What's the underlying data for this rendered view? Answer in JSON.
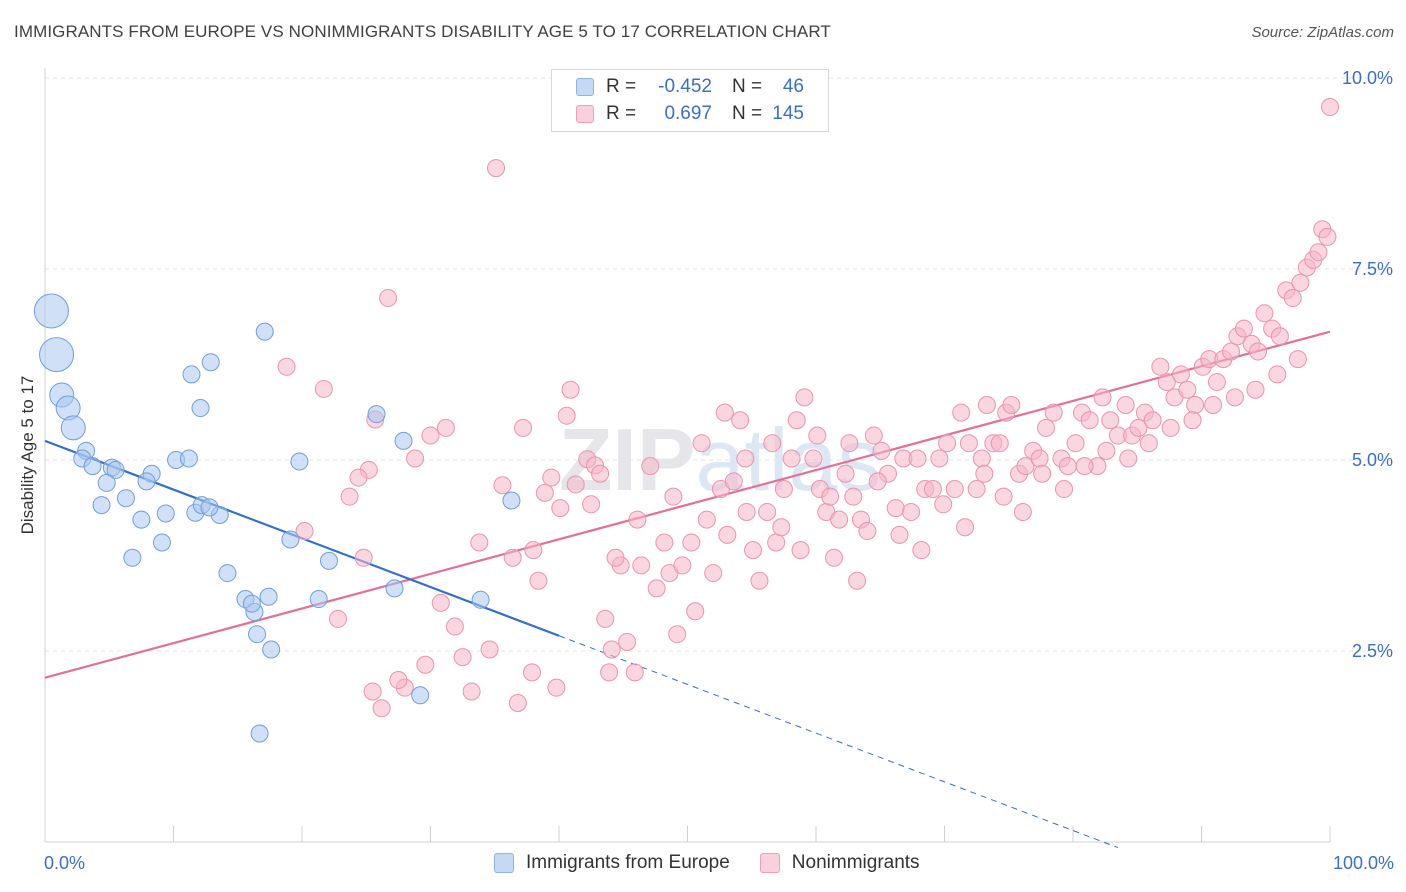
{
  "title": "IMMIGRANTS FROM EUROPE VS NONIMMIGRANTS DISABILITY AGE 5 TO 17 CORRELATION CHART",
  "source": "Source: ZipAtlas.com",
  "watermark": "ZIPatlas",
  "legend": {
    "rows": [
      {
        "r_label": "R =",
        "r_value": "-0.452",
        "n_label": "N =",
        "n_value": "46",
        "color": "#a9c6ee"
      },
      {
        "r_label": "R =",
        "r_value": "0.697",
        "n_label": "N =",
        "n_value": "145",
        "color": "#f5b5c8"
      }
    ]
  },
  "bottom_legend": [
    {
      "label": "Immigrants from Europe",
      "color": "#a9c6ee"
    },
    {
      "label": "Nonimmigrants",
      "color": "#f5b5c8"
    }
  ],
  "chart_data": {
    "type": "scatter",
    "title": "IMMIGRANTS FROM EUROPE VS NONIMMIGRANTS DISABILITY AGE 5 TO 17 CORRELATION CHART",
    "xlabel": "",
    "ylabel": "Disability Age 5 to 17",
    "xlim": [
      0,
      100
    ],
    "ylim": [
      0,
      10
    ],
    "x_tick_labels": [
      "0.0%",
      "100.0%"
    ],
    "y_ticks": [
      {
        "value": 2.5,
        "label": "2.5%"
      },
      {
        "value": 5.0,
        "label": "5.0%"
      },
      {
        "value": 7.5,
        "label": "7.5%"
      },
      {
        "value": 10.0,
        "label": "10.0%"
      }
    ],
    "grid": true,
    "legend_position": "top-center",
    "series": [
      {
        "name": "Immigrants from Europe",
        "color": "#a9c6ee",
        "stroke": "#6f9fd8",
        "trend_color": "#2f6fd0",
        "trend": {
          "x0": 0,
          "y0": 5.25,
          "x1": 40,
          "y1": 2.7,
          "dashed_to_x": 83.5
        },
        "points": [
          [
            0.5,
            6.95,
            3
          ],
          [
            0.9,
            6.38,
            3
          ],
          [
            1.3,
            5.85,
            2
          ],
          [
            1.8,
            5.68,
            2
          ],
          [
            2.2,
            5.42,
            2
          ],
          [
            3.2,
            5.12,
            1
          ],
          [
            2.9,
            5.02,
            1
          ],
          [
            3.7,
            4.92,
            1
          ],
          [
            5.2,
            4.9,
            1
          ],
          [
            5.5,
            4.87,
            1
          ],
          [
            4.8,
            4.7,
            1
          ],
          [
            6.3,
            4.5,
            1
          ],
          [
            4.4,
            4.41,
            1
          ],
          [
            7.5,
            4.22,
            1
          ],
          [
            8.3,
            4.82,
            1
          ],
          [
            7.9,
            4.72,
            1
          ],
          [
            9.1,
            3.92,
            1
          ],
          [
            10.2,
            5.0,
            1
          ],
          [
            11.2,
            5.02,
            1
          ],
          [
            9.4,
            4.3,
            1
          ],
          [
            11.7,
            4.31,
            1
          ],
          [
            12.2,
            4.41,
            1
          ],
          [
            13.6,
            4.28,
            1
          ],
          [
            12.8,
            4.38,
            1
          ],
          [
            6.8,
            3.72,
            1
          ],
          [
            14.2,
            3.52,
            1
          ],
          [
            11.4,
            6.12,
            1
          ],
          [
            12.1,
            5.68,
            1
          ],
          [
            12.9,
            6.28,
            1
          ],
          [
            15.6,
            3.18,
            1
          ],
          [
            16.3,
            3.01,
            1
          ],
          [
            16.1,
            3.12,
            1
          ],
          [
            17.4,
            3.21,
            1
          ],
          [
            16.5,
            2.72,
            1
          ],
          [
            17.6,
            2.52,
            1
          ],
          [
            16.7,
            1.42,
            1
          ],
          [
            17.1,
            6.68,
            1
          ],
          [
            19.1,
            3.96,
            1
          ],
          [
            19.8,
            4.98,
            1
          ],
          [
            21.3,
            3.18,
            1
          ],
          [
            22.1,
            3.68,
            1
          ],
          [
            25.8,
            5.6,
            1
          ],
          [
            27.2,
            3.32,
            1
          ],
          [
            27.9,
            5.25,
            1
          ],
          [
            29.2,
            1.92,
            1
          ],
          [
            33.9,
            3.17,
            1
          ],
          [
            36.3,
            4.47,
            1
          ]
        ]
      },
      {
        "name": "Nonimmigrants",
        "color": "#f5b5c8",
        "stroke": "#e994ae",
        "trend_color": "#e46f97",
        "trend": {
          "x0": 0,
          "y0": 2.15,
          "x1": 100,
          "y1": 6.68
        },
        "points": [
          [
            21.7,
            5.93,
            1
          ],
          [
            25.7,
            5.53,
            1
          ],
          [
            25.2,
            4.87,
            1
          ],
          [
            24.4,
            4.77,
            1
          ],
          [
            24.8,
            3.72,
            1
          ],
          [
            26.7,
            7.12,
            1
          ],
          [
            25.5,
            1.97,
            1
          ],
          [
            26.2,
            1.75,
            1
          ],
          [
            28.0,
            2.02,
            1
          ],
          [
            29.6,
            2.32,
            1
          ],
          [
            30.8,
            3.13,
            1
          ],
          [
            31.9,
            2.82,
            1
          ],
          [
            33.2,
            1.97,
            1
          ],
          [
            33.8,
            3.92,
            1
          ],
          [
            34.6,
            2.52,
            1
          ],
          [
            35.6,
            4.67,
            1
          ],
          [
            36.4,
            3.72,
            1
          ],
          [
            37.2,
            5.42,
            1
          ],
          [
            37.9,
            2.22,
            1
          ],
          [
            38.4,
            3.42,
            1
          ],
          [
            38.9,
            4.57,
            1
          ],
          [
            39.4,
            4.77,
            1
          ],
          [
            40.1,
            4.37,
            1
          ],
          [
            40.6,
            5.58,
            1
          ],
          [
            41.3,
            4.68,
            1
          ],
          [
            42.2,
            5.01,
            1
          ],
          [
            42.8,
            4.93,
            1
          ],
          [
            43.2,
            4.82,
            1
          ],
          [
            43.6,
            2.92,
            1
          ],
          [
            44.1,
            2.52,
            1
          ],
          [
            44.8,
            3.62,
            1
          ],
          [
            45.3,
            2.62,
            1
          ],
          [
            45.9,
            2.22,
            1
          ],
          [
            46.4,
            3.62,
            1
          ],
          [
            47.1,
            4.92,
            1
          ],
          [
            47.6,
            3.32,
            1
          ],
          [
            48.2,
            3.92,
            1
          ],
          [
            48.6,
            3.52,
            1
          ],
          [
            49.2,
            2.72,
            1
          ],
          [
            49.6,
            3.62,
            1
          ],
          [
            50.3,
            3.92,
            1
          ],
          [
            50.6,
            3.02,
            1
          ],
          [
            51.5,
            4.22,
            1
          ],
          [
            52.0,
            3.52,
            1
          ],
          [
            52.6,
            4.62,
            1
          ],
          [
            52.9,
            5.62,
            1
          ],
          [
            53.6,
            4.72,
            1
          ],
          [
            54.6,
            4.32,
            1
          ],
          [
            55.1,
            3.82,
            1
          ],
          [
            55.6,
            3.42,
            1
          ],
          [
            56.2,
            4.32,
            1
          ],
          [
            56.9,
            3.92,
            1
          ],
          [
            57.5,
            4.62,
            1
          ],
          [
            58.1,
            5.02,
            1
          ],
          [
            58.5,
            5.52,
            1
          ],
          [
            59.1,
            5.82,
            1
          ],
          [
            59.8,
            5.02,
            1
          ],
          [
            60.3,
            4.62,
            1
          ],
          [
            60.8,
            4.32,
            1
          ],
          [
            61.4,
            3.72,
            1
          ],
          [
            61.8,
            4.22,
            1
          ],
          [
            62.3,
            4.82,
            1
          ],
          [
            62.9,
            4.52,
            1
          ],
          [
            63.5,
            4.22,
            1
          ],
          [
            64.0,
            4.07,
            1
          ],
          [
            64.5,
            5.32,
            1
          ],
          [
            65.1,
            5.12,
            1
          ],
          [
            65.6,
            4.82,
            1
          ],
          [
            66.2,
            4.37,
            1
          ],
          [
            66.8,
            5.02,
            1
          ],
          [
            67.4,
            4.32,
            1
          ],
          [
            67.9,
            5.02,
            1
          ],
          [
            68.5,
            4.62,
            1
          ],
          [
            69.1,
            4.62,
            1
          ],
          [
            69.6,
            5.02,
            1
          ],
          [
            70.2,
            5.22,
            1
          ],
          [
            70.8,
            4.62,
            1
          ],
          [
            71.3,
            5.62,
            1
          ],
          [
            71.9,
            5.22,
            1
          ],
          [
            72.5,
            4.62,
            1
          ],
          [
            72.9,
            5.02,
            1
          ],
          [
            73.3,
            5.72,
            1
          ],
          [
            73.8,
            5.22,
            1
          ],
          [
            74.3,
            5.22,
            1
          ],
          [
            74.8,
            5.62,
            1
          ],
          [
            75.2,
            5.72,
            1
          ],
          [
            75.8,
            4.82,
            1
          ],
          [
            76.3,
            4.92,
            1
          ],
          [
            76.9,
            5.12,
            1
          ],
          [
            77.4,
            5.02,
            1
          ],
          [
            77.9,
            5.42,
            1
          ],
          [
            78.5,
            5.62,
            1
          ],
          [
            79.1,
            5.02,
            1
          ],
          [
            79.6,
            4.92,
            1
          ],
          [
            80.2,
            5.22,
            1
          ],
          [
            80.7,
            5.62,
            1
          ],
          [
            81.3,
            5.52,
            1
          ],
          [
            81.9,
            4.92,
            1
          ],
          [
            82.3,
            5.82,
            1
          ],
          [
            82.9,
            5.52,
            1
          ],
          [
            83.5,
            5.32,
            1
          ],
          [
            84.1,
            5.72,
            1
          ],
          [
            84.6,
            5.32,
            1
          ],
          [
            85.1,
            5.42,
            1
          ],
          [
            85.6,
            5.62,
            1
          ],
          [
            86.2,
            5.52,
            1
          ],
          [
            86.8,
            6.22,
            1
          ],
          [
            87.3,
            6.02,
            1
          ],
          [
            87.9,
            5.82,
            1
          ],
          [
            88.4,
            6.12,
            1
          ],
          [
            88.9,
            5.92,
            1
          ],
          [
            89.5,
            5.72,
            1
          ],
          [
            90.1,
            6.22,
            1
          ],
          [
            90.6,
            6.32,
            1
          ],
          [
            91.2,
            6.02,
            1
          ],
          [
            91.7,
            6.32,
            1
          ],
          [
            92.3,
            6.42,
            1
          ],
          [
            92.8,
            6.62,
            1
          ],
          [
            93.3,
            6.72,
            1
          ],
          [
            93.9,
            6.52,
            1
          ],
          [
            94.4,
            6.42,
            1
          ],
          [
            94.9,
            6.92,
            1
          ],
          [
            95.5,
            6.72,
            1
          ],
          [
            96.1,
            6.62,
            1
          ],
          [
            96.6,
            7.22,
            1
          ],
          [
            97.1,
            7.12,
            1
          ],
          [
            97.7,
            7.32,
            1
          ],
          [
            98.2,
            7.52,
            1
          ],
          [
            98.7,
            7.62,
            1
          ],
          [
            99.1,
            7.72,
            1
          ],
          [
            99.4,
            8.02,
            1
          ],
          [
            99.8,
            7.92,
            1
          ],
          [
            100.0,
            9.62,
            1
          ],
          [
            35.1,
            8.82,
            1
          ],
          [
            31.2,
            5.42,
            1
          ],
          [
            28.8,
            5.02,
            1
          ],
          [
            20.2,
            4.07,
            1
          ],
          [
            23.7,
            4.52,
            1
          ],
          [
            18.8,
            6.22,
            1
          ],
          [
            30.0,
            5.32,
            1
          ],
          [
            38.0,
            3.82,
            1
          ],
          [
            40.9,
            5.92,
            1
          ],
          [
            42.5,
            4.42,
            1
          ],
          [
            44.4,
            3.72,
            1
          ],
          [
            46.1,
            4.22,
            1
          ],
          [
            48.9,
            4.52,
            1
          ],
          [
            51.1,
            5.22,
            1
          ],
          [
            53.1,
            4.02,
            1
          ],
          [
            54.1,
            5.52,
            1
          ],
          [
            54.5,
            5.02,
            1
          ],
          [
            56.6,
            5.22,
            1
          ],
          [
            57.3,
            4.12,
            1
          ],
          [
            58.8,
            3.82,
            1
          ],
          [
            60.1,
            5.32,
            1
          ],
          [
            61.1,
            4.52,
            1
          ],
          [
            62.6,
            5.22,
            1
          ],
          [
            63.2,
            3.42,
            1
          ],
          [
            64.8,
            4.72,
            1
          ],
          [
            66.5,
            4.02,
            1
          ],
          [
            68.2,
            3.82,
            1
          ],
          [
            69.9,
            4.42,
            1
          ],
          [
            71.6,
            4.12,
            1
          ],
          [
            73.1,
            4.82,
            1
          ],
          [
            74.6,
            4.52,
            1
          ],
          [
            76.1,
            4.32,
            1
          ],
          [
            77.6,
            4.82,
            1
          ],
          [
            79.3,
            4.62,
            1
          ],
          [
            80.9,
            4.92,
            1
          ],
          [
            82.6,
            5.12,
            1
          ],
          [
            84.3,
            5.02,
            1
          ],
          [
            85.9,
            5.22,
            1
          ],
          [
            87.6,
            5.42,
            1
          ],
          [
            89.3,
            5.52,
            1
          ],
          [
            90.9,
            5.72,
            1
          ],
          [
            92.6,
            5.82,
            1
          ],
          [
            94.2,
            5.92,
            1
          ],
          [
            95.9,
            6.12,
            1
          ],
          [
            97.5,
            6.32,
            1
          ],
          [
            22.8,
            2.92,
            1
          ],
          [
            27.5,
            2.12,
            1
          ],
          [
            32.5,
            2.42,
            1
          ],
          [
            36.8,
            1.82,
            1
          ],
          [
            39.8,
            2.02,
            1
          ],
          [
            43.9,
            2.22,
            1
          ]
        ]
      }
    ]
  }
}
